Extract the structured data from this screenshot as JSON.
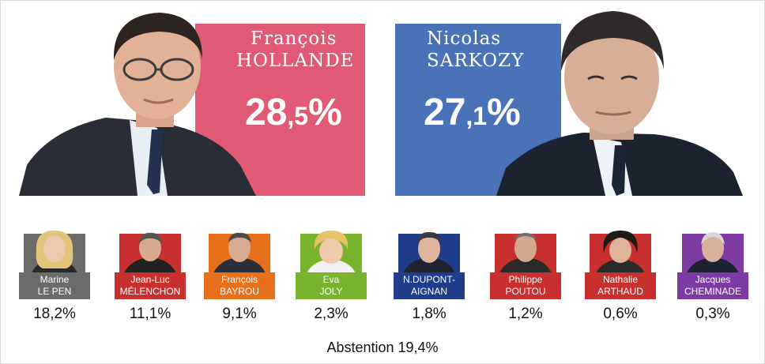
{
  "main_candidates": [
    {
      "first_name": "François",
      "last_name": "HOLLANDE",
      "pct_int": "28",
      "pct_dec": ",5",
      "pct_sign": "%",
      "color": "#e05a74"
    },
    {
      "first_name": "Nicolas",
      "last_name": "SARKOZY",
      "pct_int": "27",
      "pct_dec": ",1",
      "pct_sign": "%",
      "color": "#4a72b8"
    }
  ],
  "candidates": [
    {
      "first_name": "Marine",
      "last_name": "LE PEN",
      "result": "18,2%",
      "color": "#6b6b6b",
      "icon": "portrait-icon"
    },
    {
      "first_name": "Jean-Luc",
      "last_name": "MÉLENCHON",
      "result": "11,1%",
      "color": "#c8302f",
      "icon": "portrait-icon"
    },
    {
      "first_name": "François",
      "last_name": "BAYROU",
      "result": "9,1%",
      "color": "#e8701b",
      "icon": "portrait-icon"
    },
    {
      "first_name": "Eva",
      "last_name": "JOLY",
      "result": "2,3%",
      "color": "#7ab32d",
      "icon": "portrait-icon"
    },
    {
      "first_name": "N.DUPONT-",
      "last_name": "AIGNAN",
      "result": "1,8%",
      "color": "#1f3d8a",
      "icon": "portrait-icon"
    },
    {
      "first_name": "Philippe",
      "last_name": "POUTOU",
      "result": "1,2%",
      "color": "#c8302f",
      "icon": "portrait-icon"
    },
    {
      "first_name": "Nathalie",
      "last_name": "ARTHAUD",
      "result": "0,6%",
      "color": "#c8302f",
      "icon": "portrait-icon"
    },
    {
      "first_name": "Jacques",
      "last_name": "CHEMINADE",
      "result": "0,3%",
      "color": "#7d3aa3",
      "icon": "portrait-icon"
    }
  ],
  "abstention": "Abstention 19,4%"
}
